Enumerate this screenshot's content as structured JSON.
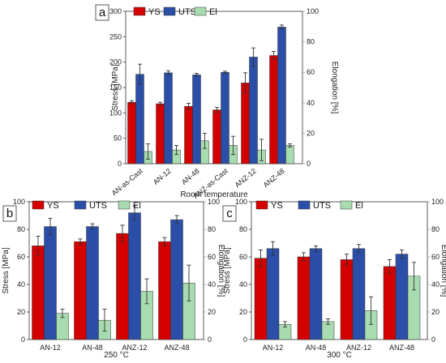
{
  "colors": {
    "ys": "#d40000",
    "uts": "#2b4fa8",
    "el": "#a8dcb0",
    "el_axis": "#7faa84",
    "err": "#333333"
  },
  "chart_data": [
    {
      "id": "a",
      "panel_label": "a",
      "type": "bar",
      "title": "",
      "xlabel": "Room temperature",
      "ylabel": "Stress [MPa]",
      "y2label": "Elongation [%]",
      "ylim": [
        0,
        300
      ],
      "y2lim": [
        0,
        100
      ],
      "yticks": [
        0,
        50,
        100,
        150,
        200,
        250,
        300
      ],
      "y2ticks": [
        0,
        20,
        40,
        60,
        80,
        100
      ],
      "tick_rotation": -40,
      "categories": [
        "AN-as-Cast",
        "AN-12",
        "AN-48",
        "ANZ-as-Cast",
        "ANZ-12",
        "ANZ-48"
      ],
      "legend": [
        "YS",
        "UTS",
        "El"
      ],
      "legend_position": "top",
      "series": [
        {
          "name": "YS",
          "axis": "left",
          "values": [
            121,
            118,
            113,
            106,
            159,
            213
          ],
          "errors": [
            3,
            3,
            6,
            5,
            20,
            8
          ]
        },
        {
          "name": "UTS",
          "axis": "left",
          "values": [
            176,
            179,
            175,
            180,
            210,
            269
          ],
          "errors": [
            20,
            4,
            3,
            2,
            18,
            4
          ]
        },
        {
          "name": "El",
          "axis": "right",
          "values": [
            8,
            9,
            15,
            12,
            9,
            12
          ],
          "errors": [
            5,
            3,
            5,
            6,
            7,
            1
          ]
        }
      ]
    },
    {
      "id": "b",
      "panel_label": "b",
      "type": "bar",
      "title": "",
      "xlabel": "250 °C",
      "ylabel": "Stress [MPa]",
      "y2label": "Elongation [%]",
      "ylim": [
        0,
        100
      ],
      "y2lim": [
        0,
        100
      ],
      "yticks": [
        0,
        20,
        40,
        60,
        80,
        100
      ],
      "y2ticks": [
        0,
        20,
        40,
        60,
        80,
        100
      ],
      "tick_rotation": 0,
      "categories": [
        "AN-12",
        "AN-48",
        "ANZ-12",
        "ANZ-48"
      ],
      "legend": [
        "YS",
        "UTS",
        "El"
      ],
      "legend_position": "top",
      "series": [
        {
          "name": "YS",
          "axis": "left",
          "values": [
            68,
            71,
            77,
            71
          ],
          "errors": [
            7,
            2,
            6,
            3
          ]
        },
        {
          "name": "UTS",
          "axis": "left",
          "values": [
            82,
            82,
            92,
            87
          ],
          "errors": [
            6,
            2,
            5,
            3
          ]
        },
        {
          "name": "El",
          "axis": "right",
          "values": [
            19,
            14,
            35,
            41
          ],
          "errors": [
            3,
            8,
            9,
            13
          ]
        }
      ]
    },
    {
      "id": "c",
      "panel_label": "c",
      "type": "bar",
      "title": "",
      "xlabel": "300 °C",
      "ylabel": "Stress [MPa]",
      "y2label": "Elongation [%]",
      "ylim": [
        0,
        100
      ],
      "y2lim": [
        0,
        100
      ],
      "yticks": [
        0,
        20,
        40,
        60,
        80,
        100
      ],
      "y2ticks": [
        0,
        20,
        40,
        60,
        80,
        100
      ],
      "tick_rotation": 0,
      "categories": [
        "AN-12",
        "AN-48",
        "ANZ-12",
        "ANZ-48"
      ],
      "legend": [
        "YS",
        "UTS",
        "El"
      ],
      "legend_position": "top",
      "series": [
        {
          "name": "YS",
          "axis": "left",
          "values": [
            59,
            60,
            58,
            53
          ],
          "errors": [
            6,
            3,
            4,
            5
          ]
        },
        {
          "name": "UTS",
          "axis": "left",
          "values": [
            66,
            66,
            66,
            62
          ],
          "errors": [
            5,
            2,
            3,
            3
          ]
        },
        {
          "name": "El",
          "axis": "right",
          "values": [
            11,
            13,
            21,
            46
          ],
          "errors": [
            2,
            2,
            10,
            10
          ]
        }
      ]
    }
  ]
}
